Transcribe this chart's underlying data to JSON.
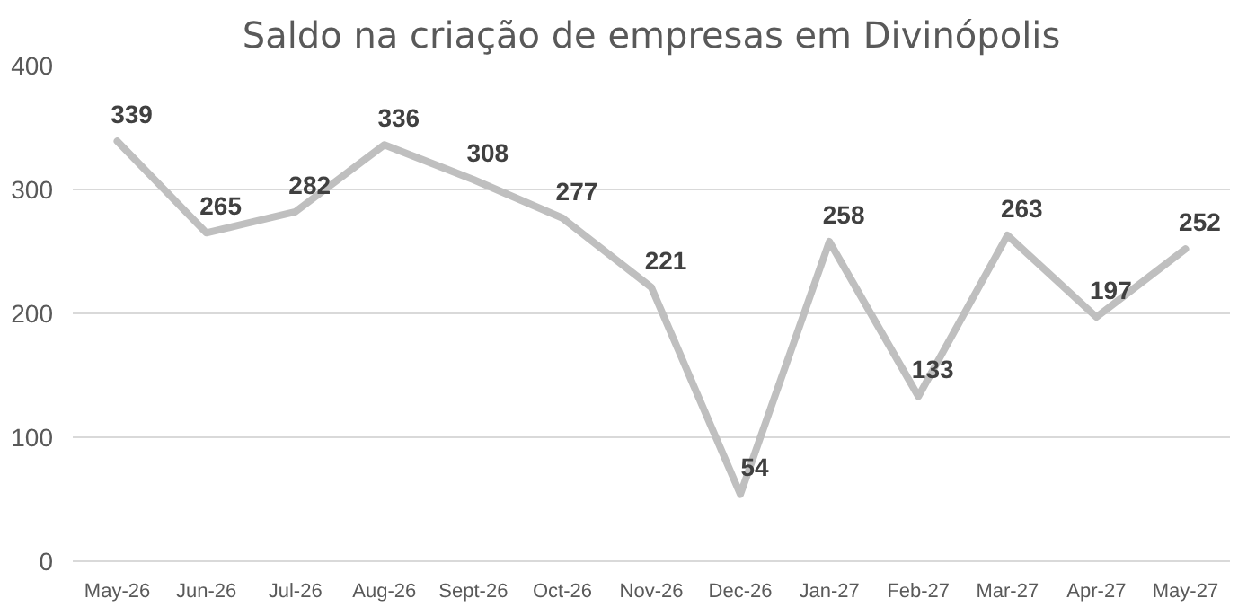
{
  "chart_data": {
    "type": "line",
    "title": "Saldo na criação de empresas em Divinópolis",
    "categories": [
      "May-26",
      "Jun-26",
      "Jul-26",
      "Aug-26",
      "Sept-26",
      "Oct-26",
      "Nov-26",
      "Dec-26",
      "Jan-27",
      "Feb-27",
      "Mar-27",
      "Apr-27",
      "May-27"
    ],
    "series": [
      {
        "color": "#bfbfbf",
        "values": [
          339,
          265,
          282,
          336,
          308,
          277,
          221,
          54,
          258,
          133,
          263,
          197,
          252
        ]
      }
    ],
    "ylim": [
      0,
      400
    ],
    "yticks": [
      0,
      100,
      200,
      300,
      400
    ],
    "grid": "y",
    "data_labels": true,
    "marker": "none",
    "line_style": "solid"
  }
}
